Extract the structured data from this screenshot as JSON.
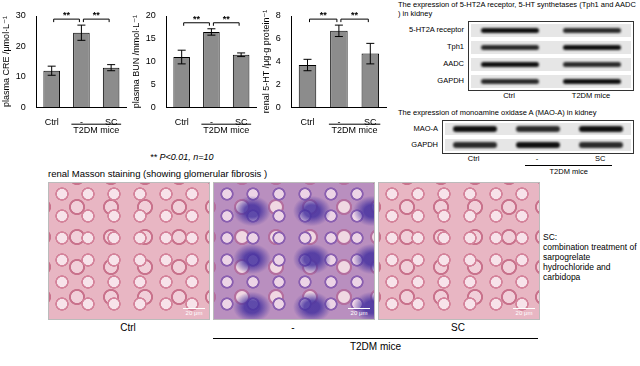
{
  "chart_data": [
    {
      "type": "bar",
      "y_label": "plasma CRE /μmol·L⁻¹",
      "categories": [
        "Ctrl",
        "-",
        "SC"
      ],
      "values": [
        12,
        24.5,
        13
      ],
      "errors": [
        1.5,
        2.5,
        1
      ],
      "color": "#8c8c8c",
      "ylim": [
        0,
        30
      ],
      "yticks": [
        0,
        10,
        20,
        30
      ],
      "grid": false,
      "group": {
        "label": "T2DM mice",
        "categories": [
          "-",
          "SC"
        ]
      },
      "significance": [
        {
          "from": "Ctrl",
          "to": "-",
          "label": "**"
        },
        {
          "from": "-",
          "to": "SC",
          "label": "**"
        }
      ]
    },
    {
      "type": "bar",
      "y_label": "plasma BUN /mmol·L⁻¹",
      "categories": [
        "Ctrl",
        "-",
        "SC"
      ],
      "values": [
        11,
        16.5,
        11.5
      ],
      "errors": [
        1.5,
        0.7,
        0.4
      ],
      "color": "#8c8c8c",
      "ylim": [
        0,
        20
      ],
      "yticks": [
        0,
        5,
        10,
        15,
        20
      ],
      "grid": false,
      "group": {
        "label": "T2DM mice",
        "categories": [
          "-",
          "SC"
        ]
      },
      "significance": [
        {
          "from": "Ctrl",
          "to": "-",
          "label": "**"
        },
        {
          "from": "-",
          "to": "SC",
          "label": "**"
        }
      ]
    },
    {
      "type": "bar",
      "y_label": "renal 5-HT /μg·g protein⁻¹",
      "categories": [
        "Ctrl",
        "-",
        "SC"
      ],
      "values": [
        3.7,
        6.7,
        4.7
      ],
      "errors": [
        0.5,
        0.5,
        0.9
      ],
      "color": "#8c8c8c",
      "ylim": [
        0,
        8
      ],
      "yticks": [
        0,
        2,
        4,
        6,
        8
      ],
      "grid": false,
      "group": {
        "label": "T2DM mice",
        "categories": [
          "-",
          "SC"
        ]
      },
      "significance": [
        {
          "from": "Ctrl",
          "to": "-",
          "label": "**"
        },
        {
          "from": "-",
          "to": "SC",
          "label": "**"
        }
      ]
    }
  ],
  "note": "** P<0.01, n=10",
  "western_blots": [
    {
      "title": "The expression of 5-HT2A receptor, 5-HT synthetases (Tph1 and AADC ) in kidney",
      "rows": [
        "5-HT2A receptor",
        "Tph1",
        "AADC",
        "GAPDH"
      ],
      "lanes": [
        "Ctrl",
        "T2DM mice"
      ]
    },
    {
      "title": "The expression of monoamine oxidase A (MAO-A) in kidney",
      "rows": [
        "MAO-A",
        "GAPDH"
      ],
      "lanes": [
        "Ctrl",
        "-",
        "SC"
      ],
      "group": {
        "label": "T2DM mice",
        "lanes": [
          "-",
          "SC"
        ]
      }
    }
  ],
  "staining": {
    "title": "renal Masson staining (showing glomerular fibrosis )",
    "panels": [
      {
        "label": "Ctrl",
        "scale_bar": "20 μm"
      },
      {
        "label": "-",
        "scale_bar": "20 μm"
      },
      {
        "label": "SC",
        "scale_bar": "20 μm"
      }
    ],
    "group": {
      "label": "T2DM mice",
      "panels": [
        "-",
        "SC"
      ]
    }
  },
  "abbreviation": {
    "term": "SC:",
    "definition": "combination treatment of sarpogrelate hydrochloride and carbidopa"
  }
}
